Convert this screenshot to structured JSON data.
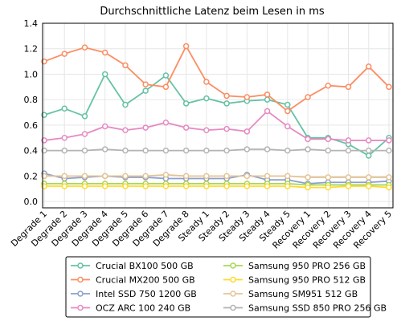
{
  "chart_data": {
    "type": "line",
    "title": "Durchschnittliche Latenz beim Lesen in ms",
    "xlabel": "",
    "ylabel": "",
    "ylim": [
      -0.05,
      1.4
    ],
    "yticks": [
      0.0,
      0.2,
      0.4,
      0.6,
      0.8,
      1.0,
      1.2,
      1.4
    ],
    "ytick_labels": [
      "0.0",
      "0.2",
      "0.4",
      "0.6",
      "0.8",
      "1.0",
      "1.2",
      "1.4"
    ],
    "grid": true,
    "legend_position": "bottom",
    "categories": [
      "Degrade 1",
      "Degrade 2",
      "Degrade 3",
      "Degrade 4",
      "Degrade 5",
      "Degrade 6",
      "Degrade 7",
      "Degrade 8",
      "Steady 1",
      "Steady 2",
      "Steady 3",
      "Steady 4",
      "Steady 5",
      "Recovery 1",
      "Recovery 2",
      "Recovery 3",
      "Recovery 4",
      "Recovery 5"
    ],
    "series": [
      {
        "name": "Crucial BX100 500 GB",
        "color": "#66c2a5",
        "values": [
          0.68,
          0.73,
          0.67,
          1.0,
          0.76,
          0.87,
          0.99,
          0.77,
          0.81,
          0.77,
          0.79,
          0.8,
          0.76,
          0.5,
          0.5,
          0.45,
          0.36,
          0.5
        ]
      },
      {
        "name": "Crucial MX200 500 GB",
        "color": "#fc8d62",
        "values": [
          1.1,
          1.16,
          1.21,
          1.17,
          1.07,
          0.92,
          0.9,
          1.22,
          0.94,
          0.83,
          0.82,
          0.84,
          0.71,
          0.82,
          0.91,
          0.9,
          1.06,
          0.9
        ]
      },
      {
        "name": "Intel SSD 750 1200 GB",
        "color": "#8da0cb",
        "values": [
          0.22,
          0.18,
          0.19,
          0.2,
          0.19,
          0.19,
          0.18,
          0.18,
          0.18,
          0.18,
          0.21,
          0.17,
          0.17,
          0.14,
          0.15,
          0.15,
          0.15,
          0.16
        ]
      },
      {
        "name": "OCZ ARC 100 240 GB",
        "color": "#e78ac3",
        "values": [
          0.48,
          0.5,
          0.53,
          0.59,
          0.56,
          0.58,
          0.62,
          0.58,
          0.56,
          0.57,
          0.55,
          0.71,
          0.59,
          0.49,
          0.49,
          0.48,
          0.48,
          0.48
        ]
      },
      {
        "name": "Samsung 950 PRO 256 GB",
        "color": "#a6d854",
        "values": [
          0.14,
          0.14,
          0.14,
          0.14,
          0.14,
          0.14,
          0.14,
          0.14,
          0.14,
          0.14,
          0.14,
          0.14,
          0.14,
          0.13,
          0.13,
          0.13,
          0.13,
          0.13
        ]
      },
      {
        "name": "Samsung 950 PRO 512 GB",
        "color": "#ffd92f",
        "values": [
          0.12,
          0.12,
          0.12,
          0.12,
          0.12,
          0.12,
          0.12,
          0.12,
          0.12,
          0.12,
          0.12,
          0.12,
          0.12,
          0.11,
          0.11,
          0.12,
          0.12,
          0.11
        ]
      },
      {
        "name": "Samsung SM951 512 GB",
        "color": "#e5c494",
        "values": [
          0.2,
          0.2,
          0.2,
          0.2,
          0.2,
          0.2,
          0.21,
          0.2,
          0.2,
          0.2,
          0.2,
          0.2,
          0.2,
          0.19,
          0.19,
          0.19,
          0.19,
          0.19
        ]
      },
      {
        "name": "Samsung SSD 850 PRO 256 GB",
        "color": "#b3b3b3",
        "values": [
          0.4,
          0.4,
          0.4,
          0.41,
          0.4,
          0.4,
          0.4,
          0.4,
          0.4,
          0.4,
          0.41,
          0.41,
          0.4,
          0.41,
          0.4,
          0.4,
          0.4,
          0.4
        ]
      }
    ]
  }
}
